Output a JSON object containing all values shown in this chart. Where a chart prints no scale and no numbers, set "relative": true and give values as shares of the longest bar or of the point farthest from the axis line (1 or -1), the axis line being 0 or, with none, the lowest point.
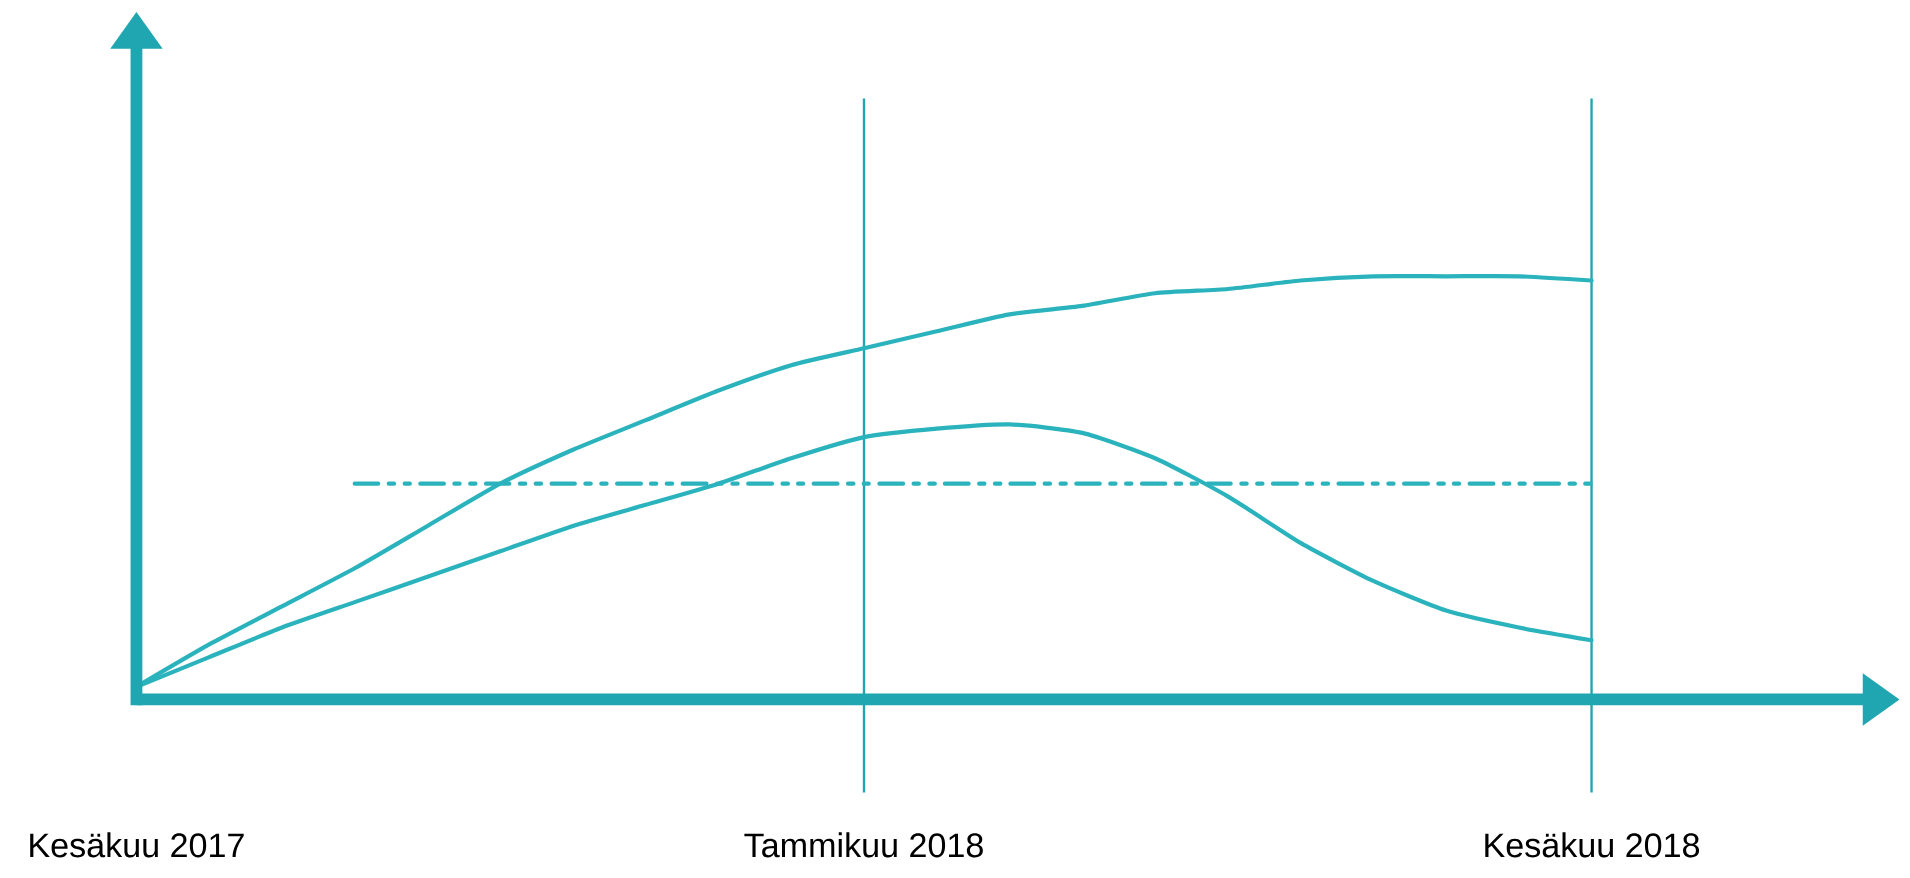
{
  "chart_data": {
    "type": "line",
    "relative": true,
    "categories": [
      "Kesäkuu 2017",
      null,
      null,
      null,
      null,
      null,
      null,
      null,
      null,
      null,
      "Tammikuu 2018",
      null,
      null,
      null,
      null,
      null,
      null,
      null,
      null,
      null,
      "Kesäkuu 2018"
    ],
    "ref_lines": [
      {
        "axis": "x",
        "value": "Tammikuu 2018",
        "color": "#1fa6b0"
      },
      {
        "axis": "x",
        "value": "Kesäkuu 2018",
        "color": "#1fa6b0"
      },
      {
        "axis": "y",
        "value": 0,
        "color": "#1fa6b0"
      }
    ],
    "series": [
      {
        "color": "#2ab3bd",
        "values": [
          0.03,
          0.13,
          0.22,
          0.31,
          0.41,
          0.51,
          0.59,
          0.66,
          0.73,
          0.79,
          0.83,
          0.87,
          0.91,
          0.93,
          0.96,
          0.97,
          0.99,
          1.0,
          1.0,
          1.0,
          0.99
        ]
      },
      {
        "color": "#2ab3bd",
        "values": [
          0.03,
          0.1,
          0.17,
          0.23,
          0.29,
          0.35,
          0.41,
          0.46,
          0.51,
          0.57,
          0.62,
          0.64,
          0.65,
          0.63,
          0.57,
          0.48,
          0.37,
          0.28,
          0.21,
          0.17,
          0.14
        ]
      },
      {
        "color": "#2ab3bd",
        "line_style": "dashdot",
        "values": [
          null,
          null,
          null,
          0.51,
          0.51,
          0.51,
          0.51,
          0.51,
          0.51,
          0.51,
          0.51,
          0.51,
          0.51,
          0.51,
          0.51,
          0.51,
          0.51,
          0.51,
          0.51,
          0.51,
          0.51
        ]
      }
    ]
  }
}
